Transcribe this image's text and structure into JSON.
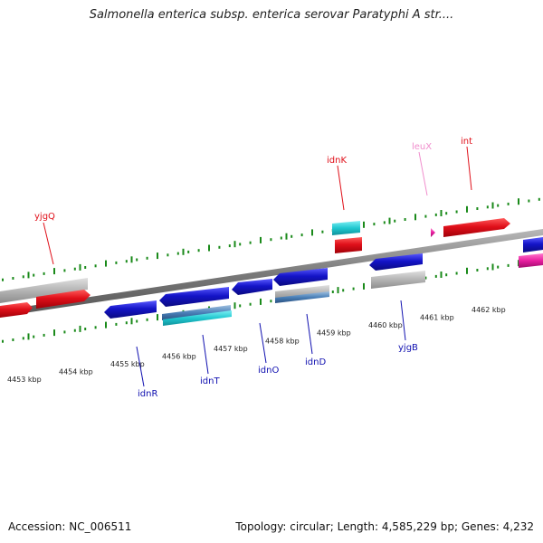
{
  "title": "Salmonella enterica subsp. enterica serovar Paratyphi A str....",
  "footer": {
    "accession_label": "Accession:",
    "accession": "NC_006511",
    "topology_label": "Topology:",
    "topology": "circular",
    "length_label": "Length:",
    "length": "4,585,229 bp",
    "genes_label": "Genes:",
    "genes": "4,232"
  },
  "ticks": [
    {
      "kb": 4453,
      "label": "4453 kbp"
    },
    {
      "kb": 4454,
      "label": "4454 kbp"
    },
    {
      "kb": 4455,
      "label": "4455 kbp"
    },
    {
      "kb": 4456,
      "label": "4456 kbp"
    },
    {
      "kb": 4457,
      "label": "4457 kbp"
    },
    {
      "kb": 4458,
      "label": "4458 kbp"
    },
    {
      "kb": 4459,
      "label": "4459 kbp"
    },
    {
      "kb": 4460,
      "label": "4460 kbp"
    },
    {
      "kb": 4461,
      "label": "4461 kbp"
    },
    {
      "kb": 4462,
      "label": "4462 kbp"
    }
  ],
  "gene_labels": {
    "forward": [
      {
        "name": "yjgQ",
        "color": "#e0101a"
      },
      {
        "name": "idnK",
        "color": "#e0101a"
      },
      {
        "name": "leuX",
        "color": "#f08ccc"
      },
      {
        "name": "int",
        "color": "#e0101a"
      }
    ],
    "reverse": [
      {
        "name": "idnR",
        "color": "#1010b0"
      },
      {
        "name": "idnT",
        "color": "#1010b0"
      },
      {
        "name": "idnO",
        "color": "#1010b0"
      },
      {
        "name": "idnD",
        "color": "#1010b0"
      },
      {
        "name": "yjgB",
        "color": "#1010b0"
      }
    ]
  },
  "colors": {
    "forward_gene": "#e0101a",
    "reverse_gene": "#1414c8",
    "pseudo_gene": "#b0b0b0",
    "rna_gene": "#20c8d0",
    "trna_gene": "#f08ccc",
    "magenta_gene": "#e81ea0",
    "backbone": "#808080",
    "tick": "#1a8a1a"
  }
}
